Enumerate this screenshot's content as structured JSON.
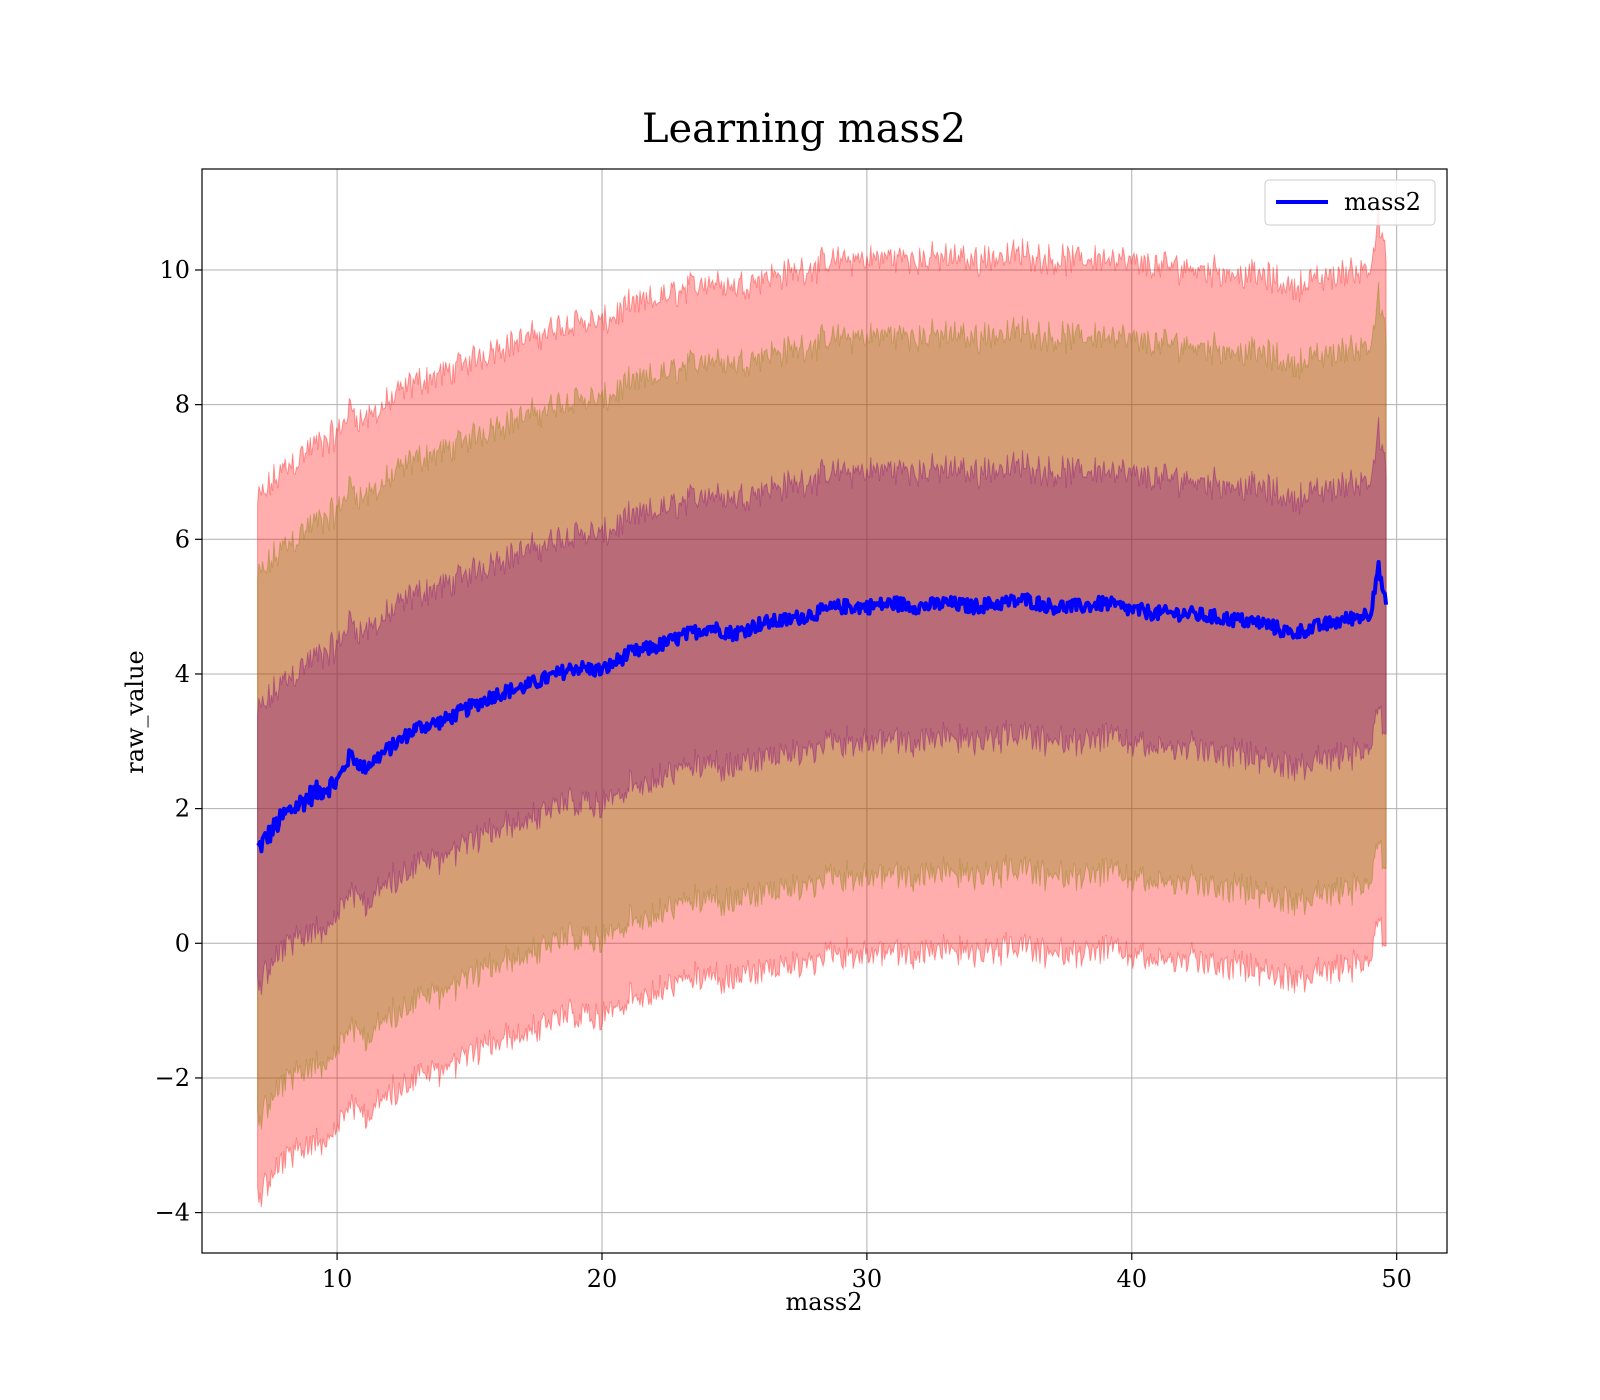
{
  "chart_data": {
    "type": "line",
    "title": "Learning mass2",
    "xlabel": "mass2",
    "ylabel": "raw_value",
    "xlim": [
      4.9,
      51.9
    ],
    "ylim": [
      -4.6,
      11.5
    ],
    "xticks": [
      10,
      20,
      30,
      40,
      50
    ],
    "yticks": [
      -4,
      -2,
      0,
      2,
      4,
      6,
      8,
      10
    ],
    "xtick_labels": [
      "10",
      "20",
      "30",
      "40",
      50
    ],
    "ytick_labels": [
      "−4",
      "−2",
      "0",
      "2",
      "4",
      "6",
      "8",
      "10"
    ],
    "grid": true,
    "legend": {
      "position": "top-right",
      "entries": [
        {
          "name": "mass2",
          "color": "#0000ff"
        }
      ]
    },
    "series": [
      {
        "name": "mass2",
        "color": "#0000ff",
        "x": [
          7.0,
          8.0,
          9.0,
          10.0,
          10.5,
          11.0,
          12.0,
          13.0,
          14.0,
          15.0,
          16.0,
          17.0,
          18.0,
          19.0,
          20.0,
          21.0,
          22.0,
          23.0,
          24.0,
          25.0,
          26.0,
          27.0,
          28.0,
          29.0,
          30.0,
          31.0,
          32.0,
          33.0,
          34.0,
          35.0,
          36.0,
          37.0,
          38.0,
          39.0,
          40.0,
          41.0,
          42.0,
          43.0,
          44.0,
          45.0,
          46.0,
          47.0,
          48.0,
          49.0,
          49.3,
          49.6
        ],
        "y": [
          1.4,
          1.9,
          2.2,
          2.4,
          2.8,
          2.6,
          2.9,
          3.2,
          3.3,
          3.5,
          3.7,
          3.8,
          3.95,
          4.1,
          4.05,
          4.3,
          4.4,
          4.55,
          4.7,
          4.6,
          4.75,
          4.8,
          4.9,
          5.0,
          5.0,
          5.05,
          5.0,
          5.05,
          5.0,
          5.05,
          5.1,
          5.0,
          5.0,
          5.05,
          4.95,
          4.9,
          4.9,
          4.85,
          4.8,
          4.75,
          4.6,
          4.7,
          4.8,
          4.9,
          5.6,
          5.0
        ]
      }
    ],
    "bands": [
      {
        "sigma": 3,
        "color": "#ff0000",
        "opacity": 0.32,
        "half_width": 5.15
      },
      {
        "sigma": 2,
        "color": "#808000",
        "opacity": 0.32,
        "half_width": 4.0
      },
      {
        "sigma": 1,
        "color": "#800080",
        "opacity": 0.32,
        "half_width": 2.0
      }
    ]
  }
}
